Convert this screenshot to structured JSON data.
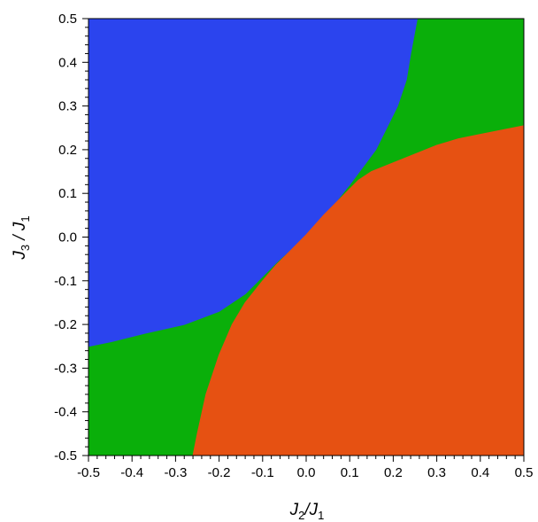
{
  "chart_data": {
    "type": "heatmap",
    "title": "",
    "xlabel": {
      "main": "J",
      "sub1": "2",
      "sep": "/J",
      "sub2": "1"
    },
    "ylabel": {
      "main": "J",
      "sub1": "3",
      "sep": " / J",
      "sub2": "1"
    },
    "xlim": [
      -0.5,
      0.5
    ],
    "ylim": [
      -0.5,
      0.5
    ],
    "xticks": [
      -0.5,
      -0.4,
      -0.3,
      -0.2,
      -0.1,
      0.0,
      0.1,
      0.2,
      0.3,
      0.4,
      0.5
    ],
    "yticks": [
      -0.5,
      -0.4,
      -0.3,
      -0.2,
      -0.1,
      0.0,
      0.1,
      0.2,
      0.3,
      0.4,
      0.5
    ],
    "xtick_labels": [
      "-0.5",
      "-0.4",
      "-0.3",
      "-0.2",
      "-0.1",
      "0.0",
      "0.1",
      "0.2",
      "0.3",
      "0.4",
      "0.5"
    ],
    "ytick_labels": [
      "-0.5",
      "-0.4",
      "-0.3",
      "-0.2",
      "-0.1",
      "0.0",
      "0.1",
      "0.2",
      "0.3",
      "0.4",
      "0.5"
    ],
    "grid": false,
    "regions": [
      {
        "color": "#2B44EE",
        "boundary": [
          [
            -0.5,
            0.5
          ],
          [
            0.255,
            0.5
          ],
          [
            0.24,
            0.42
          ],
          [
            0.23,
            0.36
          ],
          [
            0.21,
            0.3
          ],
          [
            0.185,
            0.25
          ],
          [
            0.16,
            0.2
          ],
          [
            0.13,
            0.16
          ],
          [
            0.1,
            0.12
          ],
          [
            0.06,
            0.07
          ],
          [
            0.02,
            0.02
          ],
          [
            -0.02,
            -0.015
          ],
          [
            -0.065,
            -0.055
          ],
          [
            -0.1,
            -0.09
          ],
          [
            -0.14,
            -0.13
          ],
          [
            -0.2,
            -0.17
          ],
          [
            -0.28,
            -0.2
          ],
          [
            -0.37,
            -0.22
          ],
          [
            -0.45,
            -0.24
          ],
          [
            -0.5,
            -0.25
          ]
        ]
      },
      {
        "color": "#E65112",
        "boundary": [
          [
            0.5,
            -0.5
          ],
          [
            0.5,
            0.255
          ],
          [
            0.45,
            0.245
          ],
          [
            0.4,
            0.235
          ],
          [
            0.35,
            0.225
          ],
          [
            0.3,
            0.21
          ],
          [
            0.25,
            0.19
          ],
          [
            0.2,
            0.17
          ],
          [
            0.15,
            0.15
          ],
          [
            0.12,
            0.13
          ],
          [
            0.08,
            0.09
          ],
          [
            0.04,
            0.05
          ],
          [
            0.0,
            0.005
          ],
          [
            -0.04,
            -0.035
          ],
          [
            -0.07,
            -0.065
          ],
          [
            -0.1,
            -0.1
          ],
          [
            -0.14,
            -0.15
          ],
          [
            -0.17,
            -0.2
          ],
          [
            -0.2,
            -0.27
          ],
          [
            -0.23,
            -0.36
          ],
          [
            -0.25,
            -0.45
          ],
          [
            -0.26,
            -0.5
          ]
        ]
      }
    ],
    "background_region_color": "#0AAF0A"
  }
}
